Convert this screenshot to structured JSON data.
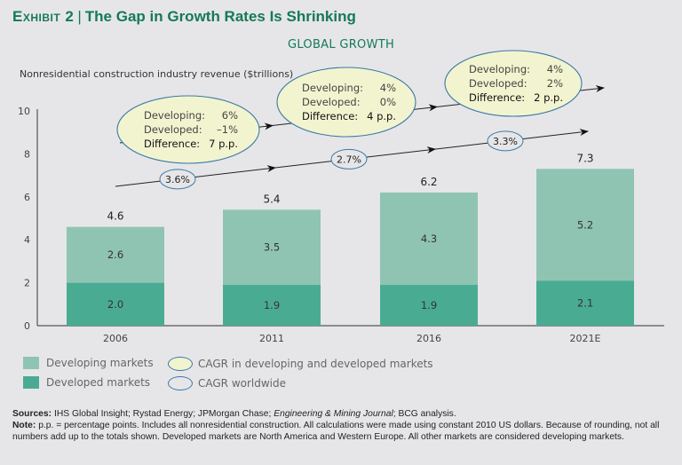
{
  "header": {
    "exhibit_label": "Exhibit 2",
    "title": "The Gap in Growth Rates Is Shrinking",
    "subtitle": "GLOBAL GROWTH"
  },
  "chart_data": {
    "type": "bar",
    "stacked": true,
    "title": "GLOBAL GROWTH",
    "ylabel": "Nonresidential construction industry revenue ($trillions)",
    "xlabel": "",
    "ylim": [
      0,
      10
    ],
    "yticks": [
      0,
      2,
      4,
      6,
      8,
      10
    ],
    "categories": [
      "2006",
      "2011",
      "2016",
      "2021E"
    ],
    "series": [
      {
        "name": "Developed markets",
        "values": [
          2.0,
          1.9,
          1.9,
          2.1
        ],
        "labels": [
          "2.0",
          "1.9",
          "1.9",
          "2.1"
        ],
        "color": "#4aab93"
      },
      {
        "name": "Developing markets",
        "values": [
          2.6,
          3.5,
          4.3,
          5.2
        ],
        "labels": [
          "2.6",
          "3.5",
          "4.3",
          "5.2"
        ],
        "color": "#8fc4b2"
      }
    ],
    "totals": [
      4.6,
      5.4,
      6.2,
      7.3
    ],
    "total_labels": [
      "4.6",
      "5.4",
      "6.2",
      "7.3"
    ],
    "cagr_worldwide": [
      "3.6%",
      "2.7%",
      "3.3%"
    ],
    "cagr_by_market": [
      {
        "developing_label": "Developing:",
        "developing": "6%",
        "developed_label": "Developed:",
        "developed": "–1%",
        "difference_label": "Difference:",
        "difference": "7 p.p."
      },
      {
        "developing_label": "Developing:",
        "developing": "4%",
        "developed_label": "Developed:",
        "developed": "0%",
        "difference_label": "Difference:",
        "difference": "4 p.p."
      },
      {
        "developing_label": "Developing:",
        "developing": "4%",
        "developed_label": "Developed:",
        "developed": "2%",
        "difference_label": "Difference:",
        "difference": "2 p.p."
      }
    ],
    "legend": [
      {
        "label": "Developing markets",
        "type": "swatch",
        "color": "#8fc4b2"
      },
      {
        "label": "Developed markets",
        "type": "swatch",
        "color": "#4aab93"
      },
      {
        "label": "CAGR in developing and developed markets",
        "type": "ellipse",
        "fill": "#f2f4cf"
      },
      {
        "label": "CAGR worldwide",
        "type": "ellipse",
        "fill": "none"
      }
    ],
    "legend_position": "bottom-left",
    "grid": false
  },
  "notes": {
    "sources_label": "Sources:",
    "sources_text": "IHS Global Insight; Rystad Energy; JPMorgan Chase;",
    "sources_italic": "Engineering & Mining Journal",
    "sources_tail": "; BCG analysis.",
    "note_label": "Note:",
    "note_text": "p.p. = percentage points. Includes all nonresidential construction. All calculations were made using constant 2010 US dollars. Because of rounding, not all numbers add up to the totals shown. Developed markets are North America and Western Europe. All other markets are considered developing markets."
  },
  "colors": {
    "brand_green": "#147a55",
    "developing": "#8fc4b2",
    "developed": "#4aab93",
    "ellipse_fill": "#f2f4cf",
    "ellipse_stroke": "#3a78a8"
  }
}
